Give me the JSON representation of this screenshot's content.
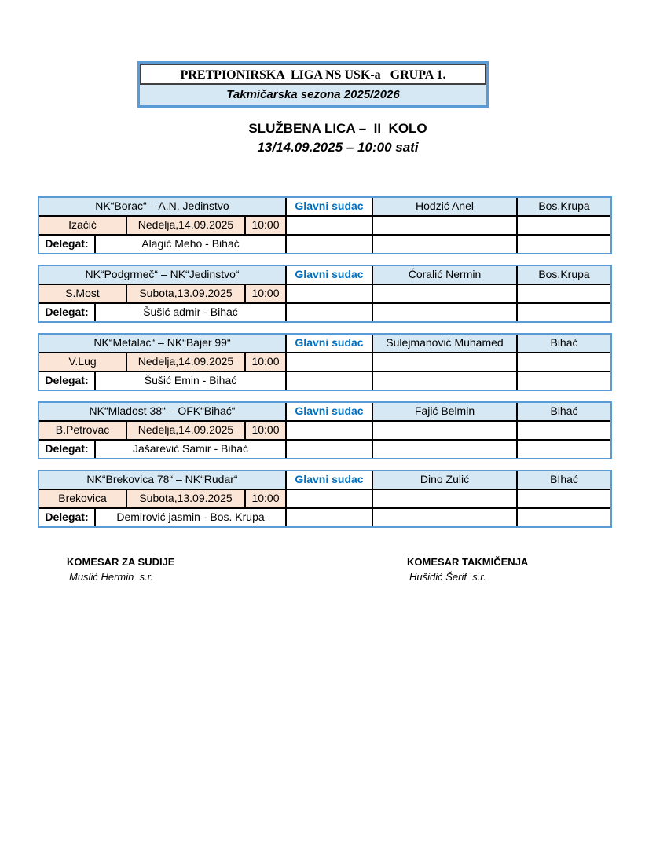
{
  "header_box": {
    "title": "PRETPIONIRSKA  LIGA NS USK-a   GRUPA 1.",
    "subtitle": "Takmičarska sezona 2025/2026"
  },
  "heading": {
    "line1": "SLUŽBENA LICA –  II  KOLO",
    "line2": "13/14.09.2025 – 10:00 sati"
  },
  "labels": {
    "glavni_sudac": "Glavni sudac",
    "delegat": "Delegat:"
  },
  "matches": [
    {
      "teams": "NK“Borac“ – A.N. Jedinstvo",
      "referee": "Hodzić Anel",
      "referee_city": "Bos.Krupa",
      "venue": "Izačić",
      "date": "Nedelja,14.09.2025",
      "time": "10:00",
      "delegate": "Alagić Meho - Bihać"
    },
    {
      "teams": "NK“Podgrmeč“ – NK“Jedinstvo“",
      "referee": "Ćoralić Nermin",
      "referee_city": "Bos.Krupa",
      "venue": "S.Most",
      "date": "Subota,13.09.2025",
      "time": "10:00",
      "delegate": "Šušić admir - Bihać"
    },
    {
      "teams": "NK“Metalac“ – NK“Bajer 99“",
      "referee": "Sulejmanović Muhamed",
      "referee_city": "Bihać",
      "venue": "V.Lug",
      "date": "Nedelja,14.09.2025",
      "time": "10:00",
      "delegate": "Šušić Emin - Bihać"
    },
    {
      "teams": "NK“Mladost 38“ – OFK“Bihać“",
      "referee": "Fajić Belmin",
      "referee_city": "Bihać",
      "venue": "B.Petrovac",
      "date": "Nedelja,14.09.2025",
      "time": "10:00",
      "delegate": "Jašarević Samir - Bihać"
    },
    {
      "teams": "NK“Brekovica 78“ – NK“Rudar“",
      "referee": "Dino Zulić",
      "referee_city": "BIhać",
      "venue": "Brekovica",
      "date": "Subota,13.09.2025",
      "time": "10:00",
      "delegate": "Demirović jasmin - Bos. Krupa"
    }
  ],
  "signatures": {
    "left": {
      "title": "KOMESAR ZA SUDIJE",
      "name": "Muslić Hermin  s.r."
    },
    "right": {
      "title": "KOMESAR TAKMIČENJA",
      "name": "Hušidić Šerif  s.r."
    }
  },
  "colors": {
    "outer_border": "#5b9bd5",
    "header_fill": "#d6e8f3",
    "venue_fill": "#fbe5d6",
    "glavni_sudac_text": "#0070c0"
  }
}
